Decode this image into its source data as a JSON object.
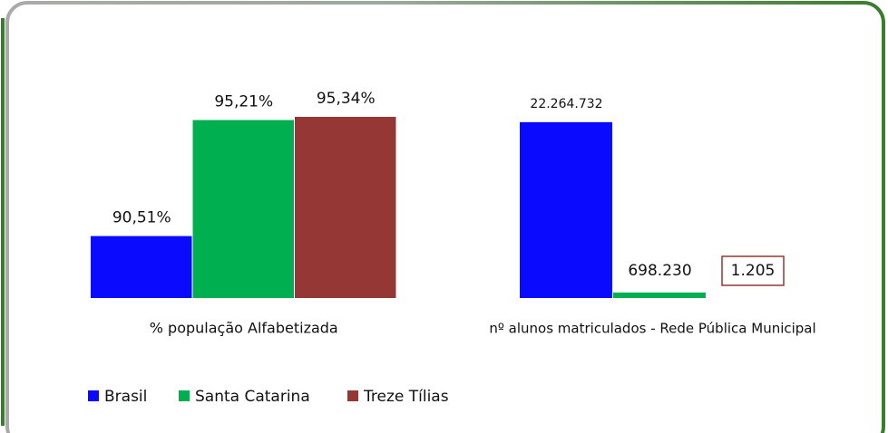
{
  "chart_data": [
    {
      "type": "bar",
      "x_label": "% população Alfabetizada",
      "ylim": [
        88,
        96
      ],
      "series": [
        {
          "name": "Brasil",
          "color": "#0a0aff",
          "values": [
            90.51
          ],
          "value_labels": [
            "90,51%"
          ]
        },
        {
          "name": "Santa Catarina",
          "color": "#00b050",
          "values": [
            95.21
          ],
          "value_labels": [
            "95,21%"
          ]
        },
        {
          "name": "Treze Tílias",
          "color": "#953735",
          "values": [
            95.34
          ],
          "value_labels": [
            "95,34%"
          ]
        }
      ]
    },
    {
      "type": "bar",
      "x_label": "nº alunos matriculados - Rede Pública Municipal",
      "ylim": [
        0,
        25000000
      ],
      "series": [
        {
          "color": "#0a0aff",
          "values": [
            22264732
          ],
          "value_labels": [
            "22.264.732"
          ]
        },
        {
          "color": "#00b050",
          "values": [
            698230
          ],
          "value_labels": [
            "698.230"
          ]
        },
        {
          "color": "#953735",
          "values": [
            1205
          ],
          "value_labels": [
            "1.205"
          ]
        }
      ]
    }
  ]
}
